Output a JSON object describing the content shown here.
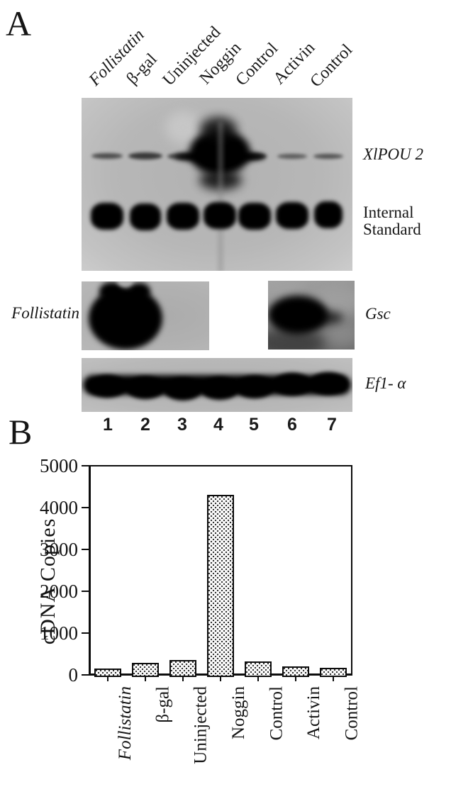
{
  "figure": {
    "panel_a_label": "A",
    "panel_b_label": "B",
    "ink_color": "#111111",
    "blot_background": "#b6b6b6"
  },
  "panel_a": {
    "lane_labels": [
      "Follistatin",
      "β-gal",
      "Uninjected",
      "Noggin",
      "Control",
      "Activin",
      "Control"
    ],
    "lane_numbers": [
      "1",
      "2",
      "3",
      "4",
      "5",
      "6",
      "7"
    ],
    "row_labels": {
      "xlpou2": "XlPOU 2",
      "internal_standard": [
        "Internal",
        "Standard"
      ],
      "follistatin_probe": "Follistatin",
      "gsc": "Gsc",
      "ef1a": "Ef1- α"
    },
    "blot_readout": {
      "xlpou2_band_intensity": [
        "faint",
        "moderate",
        "moderate",
        "very strong",
        "moderate",
        "faint",
        "faint"
      ],
      "internal_standard_band_intensity": [
        "strong",
        "strong",
        "strong",
        "strong",
        "strong",
        "strong",
        "strong"
      ],
      "follistatin_signal_lane": "1",
      "gsc_signal_lane": "6",
      "ef1a_band_intensity": [
        "strong",
        "strong",
        "strong",
        "strong",
        "strong",
        "strong",
        "strong"
      ]
    }
  },
  "chart_data": {
    "type": "bar",
    "categories": [
      "Follistatin",
      "β-gal",
      "Uninjected",
      "Noggin",
      "Control",
      "Activin",
      "Control"
    ],
    "values": [
      160,
      285,
      360,
      4300,
      330,
      200,
      175
    ],
    "title": "",
    "xlabel": "",
    "ylabel": "cDNA Copies",
    "ylim": [
      0,
      5000
    ],
    "yticks": [
      0,
      1000,
      2000,
      3000,
      4000,
      5000
    ],
    "grid": false,
    "legend": false,
    "bar_style": "white bars with black outline and stippled dot fill",
    "italic_categories": [
      0
    ]
  }
}
